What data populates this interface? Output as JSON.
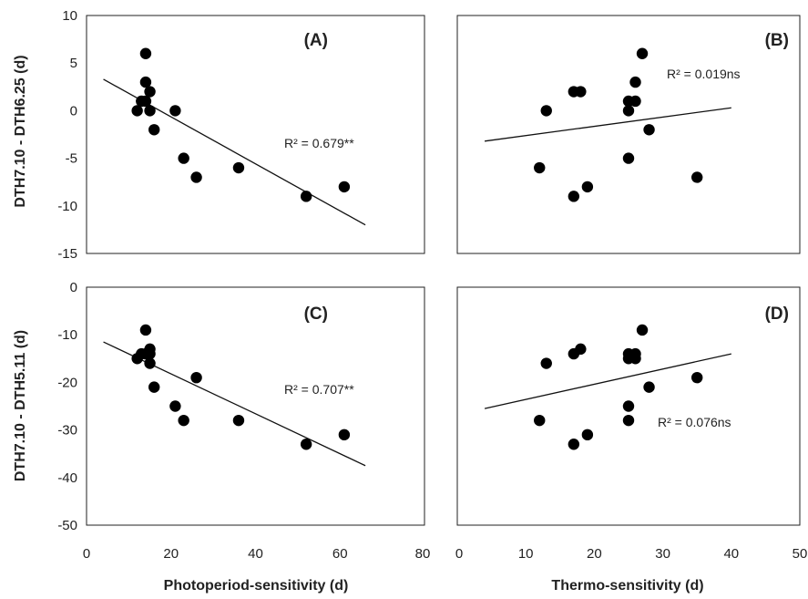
{
  "figure": {
    "ylabel_top": "DTH7.10 - DTH6.25 (d)",
    "ylabel_bottom": "DTH7.10 - DTH5.11 (d)",
    "xlabel_left": "Photoperiod-sensitivity (d)",
    "xlabel_right": "Thermo-sensitivity (d)"
  },
  "chart_data": [
    {
      "type": "scatter",
      "panel": "(A)",
      "xlim": [
        0,
        80
      ],
      "ylim": [
        -15,
        10
      ],
      "x_ticks": [
        "0",
        "20",
        "40",
        "60",
        "80"
      ],
      "y_ticks": [
        "10",
        "5",
        "0",
        "-5",
        "-10",
        "-15"
      ],
      "annotation": "R² = 0.679**",
      "points": [
        {
          "x": 12,
          "y": 0
        },
        {
          "x": 13,
          "y": 1
        },
        {
          "x": 14,
          "y": 1
        },
        {
          "x": 14,
          "y": 3
        },
        {
          "x": 14,
          "y": 6
        },
        {
          "x": 15,
          "y": 2
        },
        {
          "x": 15,
          "y": 0
        },
        {
          "x": 16,
          "y": -2
        },
        {
          "x": 21,
          "y": 0
        },
        {
          "x": 23,
          "y": -5
        },
        {
          "x": 26,
          "y": -7
        },
        {
          "x": 36,
          "y": -6
        },
        {
          "x": 52,
          "y": -9
        },
        {
          "x": 61,
          "y": -8
        }
      ],
      "trendline": {
        "x": [
          4,
          66
        ],
        "y": [
          3.3,
          -12.0
        ]
      }
    },
    {
      "type": "scatter",
      "panel": "(B)",
      "xlim": [
        0,
        50
      ],
      "ylim": [
        -15,
        10
      ],
      "x_ticks": [
        "0",
        "10",
        "20",
        "30",
        "40",
        "50"
      ],
      "y_ticks": [],
      "annotation": "R² = 0.019ns",
      "points": [
        {
          "x": 12,
          "y": -6
        },
        {
          "x": 13,
          "y": 0
        },
        {
          "x": 17,
          "y": 2
        },
        {
          "x": 17,
          "y": -9
        },
        {
          "x": 18,
          "y": 2
        },
        {
          "x": 19,
          "y": -8
        },
        {
          "x": 25,
          "y": 1
        },
        {
          "x": 25,
          "y": 0
        },
        {
          "x": 25,
          "y": -5
        },
        {
          "x": 26,
          "y": 3
        },
        {
          "x": 26,
          "y": 1
        },
        {
          "x": 27,
          "y": 6
        },
        {
          "x": 28,
          "y": -2
        },
        {
          "x": 35,
          "y": -7
        }
      ],
      "trendline": {
        "x": [
          4,
          40
        ],
        "y": [
          -3.2,
          0.3
        ]
      }
    },
    {
      "type": "scatter",
      "panel": "(C)",
      "xlim": [
        0,
        80
      ],
      "ylim": [
        -50,
        0
      ],
      "x_ticks": [
        "0",
        "20",
        "40",
        "60",
        "80"
      ],
      "y_ticks": [
        "0",
        "-10",
        "-20",
        "-30",
        "-40",
        "-50"
      ],
      "annotation": "R² = 0.707**",
      "points": [
        {
          "x": 12,
          "y": -15
        },
        {
          "x": 13,
          "y": -14
        },
        {
          "x": 14,
          "y": -9
        },
        {
          "x": 14,
          "y": -14
        },
        {
          "x": 15,
          "y": -13
        },
        {
          "x": 15,
          "y": -14
        },
        {
          "x": 15,
          "y": -16
        },
        {
          "x": 16,
          "y": -21
        },
        {
          "x": 21,
          "y": -25
        },
        {
          "x": 23,
          "y": -28
        },
        {
          "x": 26,
          "y": -19
        },
        {
          "x": 36,
          "y": -28
        },
        {
          "x": 52,
          "y": -33
        },
        {
          "x": 61,
          "y": -31
        }
      ],
      "trendline": {
        "x": [
          4,
          66
        ],
        "y": [
          -11.5,
          -37.5
        ]
      }
    },
    {
      "type": "scatter",
      "panel": "(D)",
      "xlim": [
        0,
        50
      ],
      "ylim": [
        -50,
        0
      ],
      "x_ticks": [
        "0",
        "10",
        "20",
        "30",
        "40",
        "50"
      ],
      "y_ticks": [],
      "annotation": "R² = 0.076ns",
      "points": [
        {
          "x": 12,
          "y": -28
        },
        {
          "x": 13,
          "y": -16
        },
        {
          "x": 17,
          "y": -14
        },
        {
          "x": 17,
          "y": -33
        },
        {
          "x": 18,
          "y": -13
        },
        {
          "x": 19,
          "y": -31
        },
        {
          "x": 25,
          "y": -14
        },
        {
          "x": 25,
          "y": -15
        },
        {
          "x": 25,
          "y": -25
        },
        {
          "x": 25,
          "y": -28
        },
        {
          "x": 26,
          "y": -14
        },
        {
          "x": 26,
          "y": -15
        },
        {
          "x": 27,
          "y": -9
        },
        {
          "x": 28,
          "y": -21
        },
        {
          "x": 35,
          "y": -19
        }
      ],
      "trendline": {
        "x": [
          4,
          40
        ],
        "y": [
          -25.5,
          -14.0
        ]
      }
    }
  ]
}
